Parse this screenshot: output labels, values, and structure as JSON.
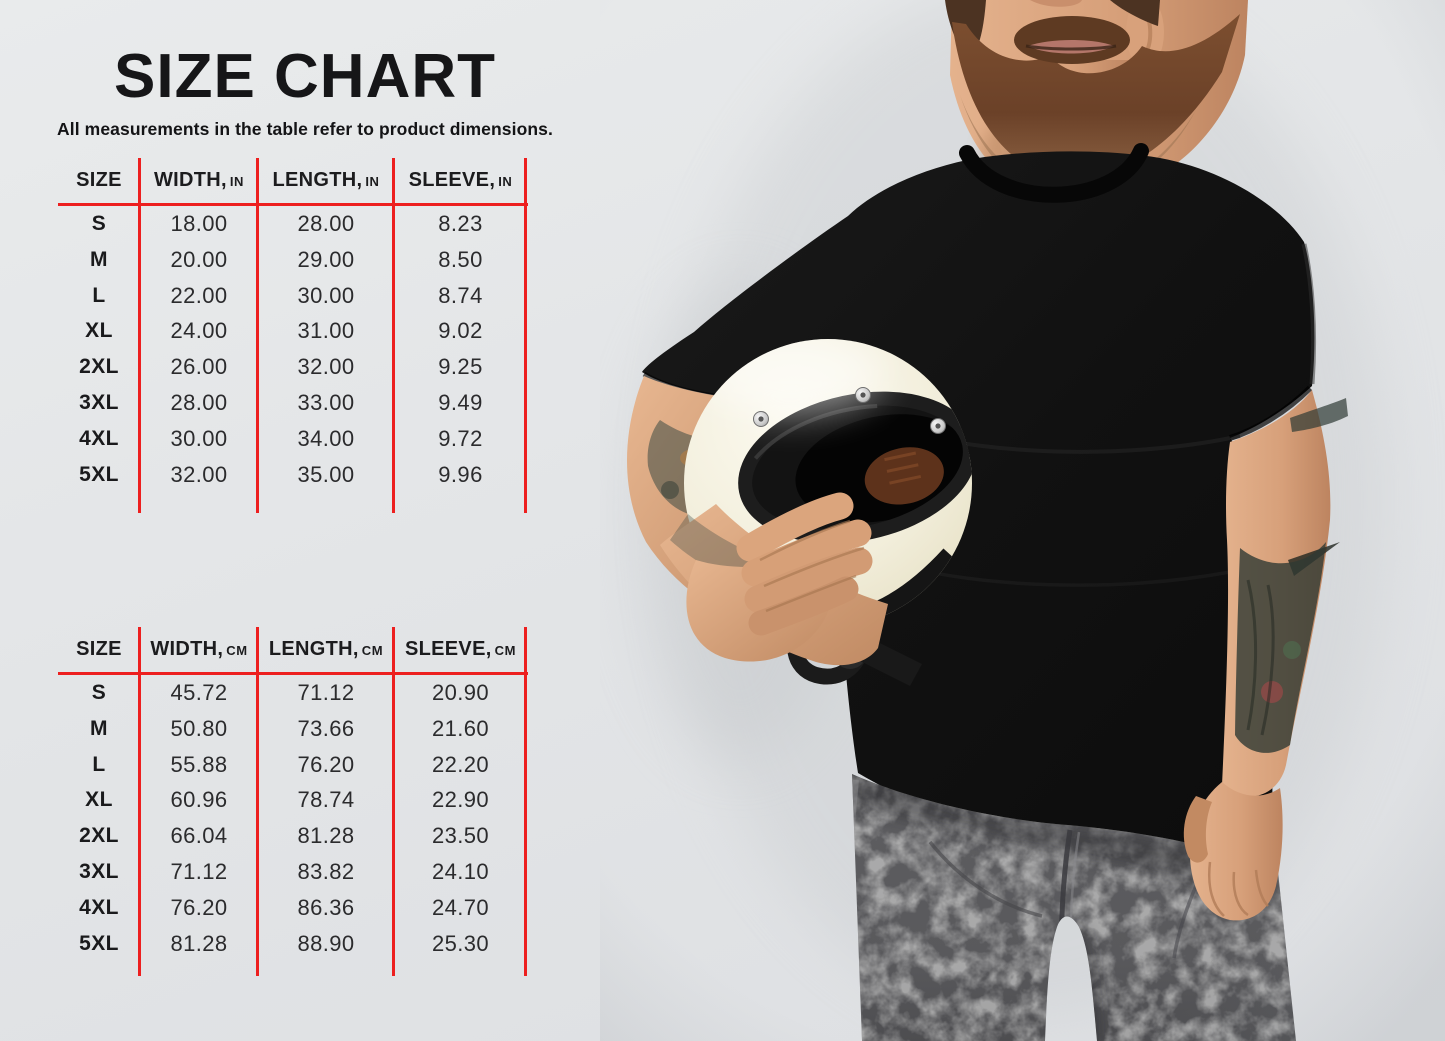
{
  "header": {
    "title": "SIZE CHART",
    "subtitle": "All measurements in the table refer to product dimensions."
  },
  "accent_color": "#ed1f1f",
  "text_color": "#1b1b1d",
  "background_color": "#e4e6e8",
  "tables": [
    {
      "name": "inches",
      "headers": [
        {
          "label": "SIZE",
          "unit": ""
        },
        {
          "label": "WIDTH,",
          "unit": "IN"
        },
        {
          "label": "LENGTH,",
          "unit": "IN"
        },
        {
          "label": "SLEEVE,",
          "unit": "IN"
        }
      ],
      "rows": [
        [
          "S",
          "18.00",
          "28.00",
          "8.23"
        ],
        [
          "M",
          "20.00",
          "29.00",
          "8.50"
        ],
        [
          "L",
          "22.00",
          "30.00",
          "8.74"
        ],
        [
          "XL",
          "24.00",
          "31.00",
          "9.02"
        ],
        [
          "2XL",
          "26.00",
          "32.00",
          "9.25"
        ],
        [
          "3XL",
          "28.00",
          "33.00",
          "9.49"
        ],
        [
          "4XL",
          "30.00",
          "34.00",
          "9.72"
        ],
        [
          "5XL",
          "32.00",
          "35.00",
          "9.96"
        ]
      ]
    },
    {
      "name": "centimeters",
      "headers": [
        {
          "label": "SIZE",
          "unit": ""
        },
        {
          "label": "WIDTH,",
          "unit": "CM"
        },
        {
          "label": "LENGTH,",
          "unit": "CM"
        },
        {
          "label": "SLEEVE,",
          "unit": "CM"
        }
      ],
      "rows": [
        [
          "S",
          "45.72",
          "71.12",
          "20.90"
        ],
        [
          "M",
          "50.80",
          "73.66",
          "21.60"
        ],
        [
          "L",
          "55.88",
          "76.20",
          "22.20"
        ],
        [
          "XL",
          "60.96",
          "78.74",
          "22.90"
        ],
        [
          "2XL",
          "66.04",
          "81.28",
          "23.50"
        ],
        [
          "3XL",
          "71.12",
          "83.82",
          "24.10"
        ],
        [
          "4XL",
          "76.20",
          "86.36",
          "24.70"
        ],
        [
          "5XL",
          "81.28",
          "88.90",
          "25.30"
        ]
      ]
    }
  ],
  "photo": {
    "alt": "Bearded man in a black t-shirt and gray acid-wash jeans holding a cream retro full-face motorcycle helmet under his tattooed arm",
    "colors": {
      "helmet": "#f3efdd",
      "helmet_trim": "#171717",
      "shirt": "#141414",
      "jeans": "#565659",
      "skin": "#d9a57f",
      "beard": "#6e452b"
    }
  }
}
